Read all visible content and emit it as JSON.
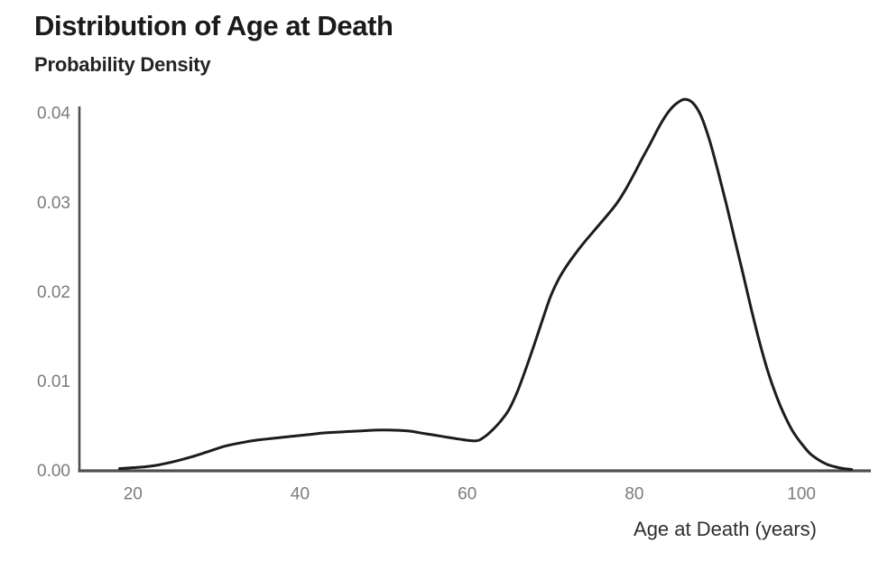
{
  "chart_data": {
    "type": "line",
    "title": "Distribution of Age at Death",
    "xlabel": "Age at Death (years)",
    "ylabel": "Probability Density",
    "xlim": [
      13.6,
      108.3
    ],
    "ylim": [
      0,
      0.04
    ],
    "grid": false,
    "legend": false,
    "x_ticks": [
      20,
      40,
      60,
      80,
      100
    ],
    "x_tick_labels": [
      "20",
      "40",
      "60",
      "80",
      "100"
    ],
    "y_ticks": [
      0,
      0.01,
      0.02,
      0.03,
      0.04
    ],
    "y_tick_labels": [
      "0.00",
      "0.01",
      "0.02",
      "0.03",
      "0.04"
    ],
    "colors": {
      "curve": "#1c1c1c",
      "axis": "#4f4f4f",
      "tick_label": "#7b7b7b"
    },
    "series": [
      {
        "name": "age-at-death-probability-density",
        "points": [
          [
            18.4,
            0.0002
          ],
          [
            20,
            0.0003
          ],
          [
            21.5,
            0.0004
          ],
          [
            23,
            0.0006
          ],
          [
            25,
            0.001
          ],
          [
            27,
            0.0015
          ],
          [
            29,
            0.0021
          ],
          [
            31,
            0.0027
          ],
          [
            33,
            0.0031
          ],
          [
            35,
            0.0034
          ],
          [
            37,
            0.0036
          ],
          [
            39,
            0.0038
          ],
          [
            41,
            0.004
          ],
          [
            43,
            0.0042
          ],
          [
            45,
            0.0043
          ],
          [
            47,
            0.0044
          ],
          [
            49,
            0.0045
          ],
          [
            51,
            0.0045
          ],
          [
            53,
            0.0044
          ],
          [
            55,
            0.0041
          ],
          [
            57,
            0.0038
          ],
          [
            59,
            0.0035
          ],
          [
            61,
            0.0033
          ],
          [
            62,
            0.0037
          ],
          [
            63,
            0.0045
          ],
          [
            64,
            0.0055
          ],
          [
            65,
            0.0068
          ],
          [
            66,
            0.0088
          ],
          [
            67,
            0.0113
          ],
          [
            68,
            0.014
          ],
          [
            69,
            0.0168
          ],
          [
            70,
            0.0195
          ],
          [
            71,
            0.0215
          ],
          [
            72,
            0.023
          ],
          [
            73,
            0.0243
          ],
          [
            74,
            0.0255
          ],
          [
            75,
            0.0266
          ],
          [
            76,
            0.0277
          ],
          [
            77,
            0.0288
          ],
          [
            78,
            0.03
          ],
          [
            79,
            0.0315
          ],
          [
            80,
            0.0332
          ],
          [
            81,
            0.035
          ],
          [
            82,
            0.0367
          ],
          [
            83,
            0.0385
          ],
          [
            84,
            0.04
          ],
          [
            85,
            0.041
          ],
          [
            86,
            0.0415
          ],
          [
            87,
            0.0411
          ],
          [
            88,
            0.0396
          ],
          [
            89,
            0.0369
          ],
          [
            90,
            0.0335
          ],
          [
            91,
            0.0298
          ],
          [
            92,
            0.0259
          ],
          [
            93,
            0.022
          ],
          [
            94,
            0.018
          ],
          [
            95,
            0.0143
          ],
          [
            96,
            0.011
          ],
          [
            97,
            0.0083
          ],
          [
            98,
            0.0061
          ],
          [
            99,
            0.0043
          ],
          [
            100,
            0.003
          ],
          [
            101,
            0.0019
          ],
          [
            102,
            0.0012
          ],
          [
            103,
            0.0007
          ],
          [
            104,
            0.0004
          ],
          [
            105,
            0.0002
          ],
          [
            106,
            0.0001
          ]
        ]
      }
    ]
  }
}
